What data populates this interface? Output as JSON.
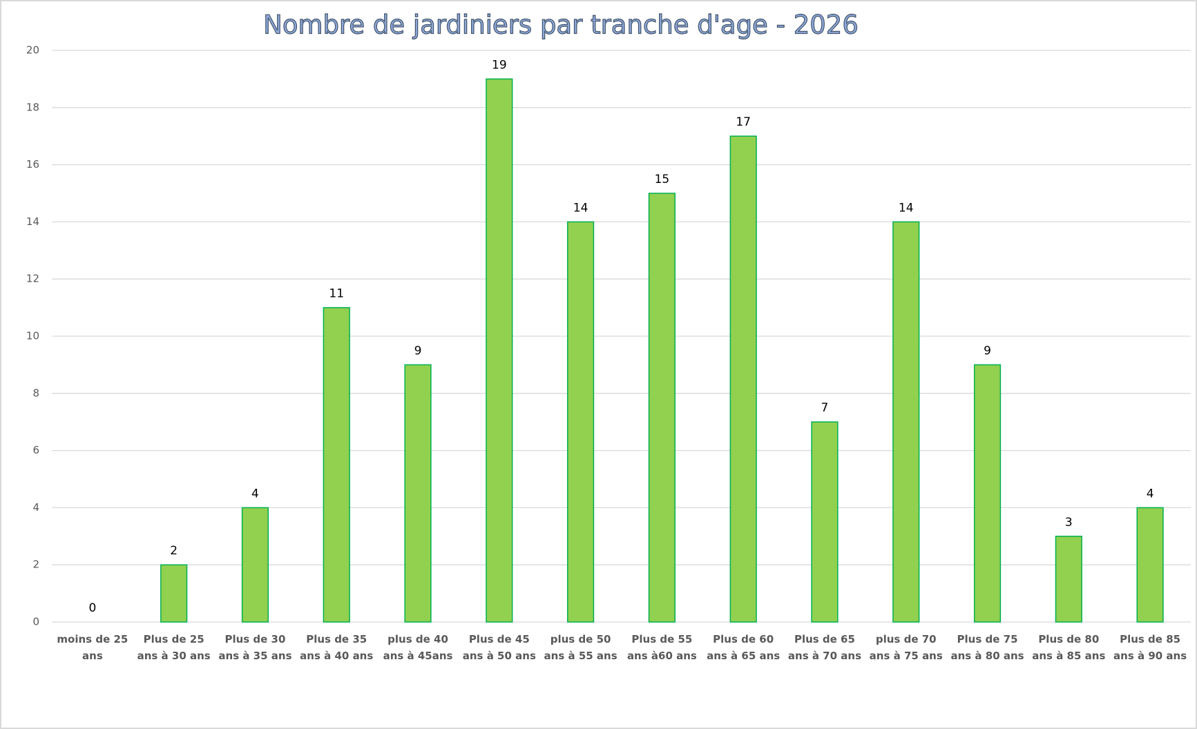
{
  "chart_data": {
    "type": "bar",
    "title": "Nombre de jardiniers par tranche d'age - 2026",
    "categories": [
      "moins de 25 ans",
      "Plus de 25 ans à 30 ans",
      "Plus de 30 ans à 35 ans",
      "Plus de 35 ans à 40 ans",
      "plus de 40 ans à 45ans",
      "Plus de 45 ans à 50 ans",
      "plus de 50 ans à 55 ans",
      "Plus de 55 ans à60 ans",
      "Plus de 60 ans à 65 ans",
      "Plus de 65 ans à 70 ans",
      "plus de 70 ans à 75 ans",
      "Plus de 75 ans à 80 ans",
      "Plus de 80 ans à 85 ans",
      "Plus de 85 ans à 90 ans"
    ],
    "values": [
      0,
      2,
      4,
      11,
      9,
      19,
      14,
      15,
      17,
      7,
      14,
      9,
      3,
      4
    ],
    "color": "#92d050",
    "edge_color": "#00b050",
    "ylim": [
      0,
      20
    ],
    "yticks": [
      0,
      2,
      4,
      6,
      8,
      10,
      12,
      14,
      16,
      18,
      20
    ],
    "grid": true
  }
}
